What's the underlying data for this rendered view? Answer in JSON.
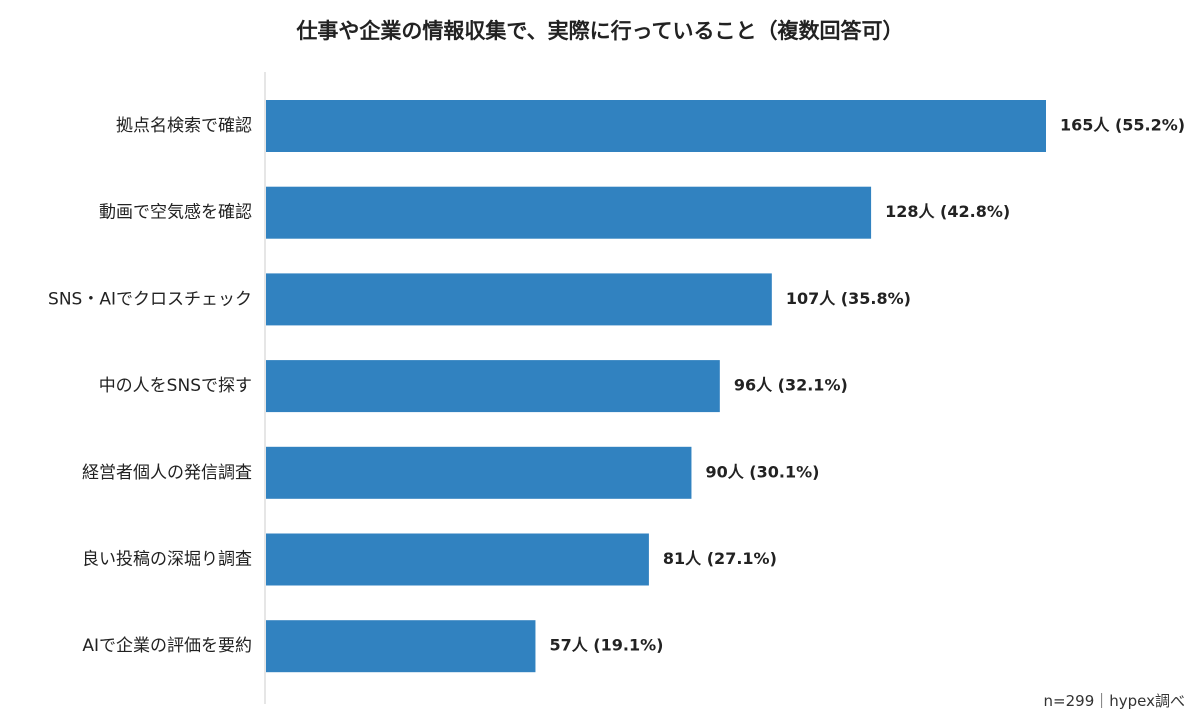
{
  "chart_data": {
    "type": "bar",
    "orientation": "horizontal",
    "title": "仕事や企業の情報収集で、実際に行っていること（複数回答可）",
    "categories": [
      "拠点名検索で確認",
      "動画で空気感を確認",
      "SNS・AIでクロスチェック",
      "中の人をSNSで探す",
      "経営者個人の発信調査",
      "良い投稿の深堀り調査",
      "AIで企業の評価を要約"
    ],
    "values": [
      165,
      128,
      107,
      96,
      90,
      81,
      57
    ],
    "percentages": [
      55.2,
      42.8,
      35.8,
      32.1,
      30.1,
      27.1,
      19.1
    ],
    "data_labels": [
      "165人 (55.2%)",
      "128人 (42.8%)",
      "107人 (35.8%)",
      "96人 (32.1%)",
      "90人 (30.1%)",
      "81人 (27.1%)",
      "57人 (19.1%)"
    ],
    "xlim": [
      0,
      165
    ],
    "grid": false,
    "legend": "none",
    "bar_color": "#3182c0",
    "footnote": "n=299｜hypex調べ"
  }
}
